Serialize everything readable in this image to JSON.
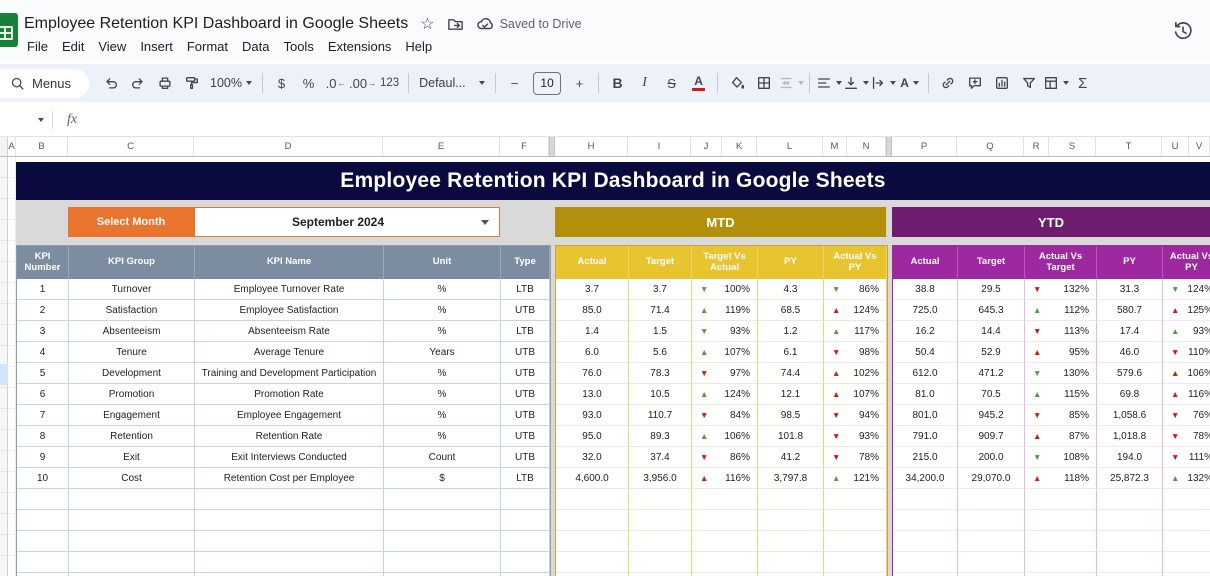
{
  "titlebar": {
    "title": "Employee Retention KPI Dashboard in Google Sheets",
    "saved_status": "Saved to Drive",
    "menus": [
      "File",
      "Edit",
      "View",
      "Insert",
      "Format",
      "Data",
      "Tools",
      "Extensions",
      "Help"
    ]
  },
  "toolbar": {
    "menus_label": "Menus",
    "zoom_value": "100%",
    "currency_label": "$",
    "percent_label": "%",
    "decrease_decimal_label": ".0",
    "increase_decimal_label": ".00",
    "more_formats_label": "123",
    "font_name": "Defaul...",
    "decrease_font_label": "−",
    "font_size": "10",
    "increase_font_label": "+",
    "bold_label": "B",
    "italic_label": "I",
    "strikethrough_label": "S",
    "text_color_label": "A",
    "text_rotation_label": "A",
    "sum_label": "Σ"
  },
  "formula_bar": {
    "fx_label": "fx"
  },
  "icons": {
    "arrow_up": "▲",
    "arrow_down": "▼",
    "arrow_left": "←",
    "arrow_right": "→",
    "star": "☆"
  },
  "columns": [
    "A",
    "B",
    "C",
    "D",
    "E",
    "F",
    "H",
    "I",
    "J",
    "K",
    "L",
    "M",
    "N",
    "P",
    "Q",
    "R",
    "S",
    "T",
    "U",
    "V"
  ],
  "colors": {
    "banner_navy": "#0a0a3e",
    "accent_orange": "#e8742d",
    "mtd_gold_dark": "#b3900b",
    "mtd_gold": "#e9c431",
    "ytd_purple_dark": "#6d1c70",
    "ytd_purple": "#9e28a0",
    "header_slate": "#7d8da1",
    "arrow_green": "#569b44",
    "arrow_red": "#cf1d0e"
  },
  "dashboard": {
    "title": "Employee Retention KPI Dashboard in Google Sheets",
    "select_month_label": "Select Month",
    "selected_month": "September 2024",
    "mtd_label": "MTD",
    "ytd_label": "YTD"
  },
  "table": {
    "info_headers": [
      "KPI Number",
      "KPI Group",
      "KPI Name",
      "Unit",
      "Type"
    ],
    "mtd_headers": [
      "Actual",
      "Target",
      "Target Vs Actual",
      "PY",
      "Actual Vs PY"
    ],
    "ytd_headers": [
      "Actual",
      "Target",
      "Actual Vs Target",
      "PY",
      "Actual Vs PY"
    ],
    "rows": [
      {
        "num": "1",
        "group": "Turnover",
        "name": "Employee Turnover Rate",
        "unit": "%",
        "type": "LTB",
        "mtd": {
          "actual": "3.7",
          "target": "3.7",
          "tva_dir": "down",
          "tva_color": "green",
          "tva": "100%",
          "py": "4.3",
          "avpy_dir": "down",
          "avpy_color": "green",
          "avpy": "86%"
        },
        "ytd": {
          "actual": "38.8",
          "target": "29.5",
          "avt_dir": "down",
          "avt_color": "red",
          "avt": "132%",
          "py": "31.3",
          "avpy_dir": "down",
          "avpy_color": "green",
          "avpy": "124%"
        }
      },
      {
        "num": "2",
        "group": "Satisfaction",
        "name": "Employee Satisfaction",
        "unit": "%",
        "type": "UTB",
        "mtd": {
          "actual": "85.0",
          "target": "71.4",
          "tva_dir": "up",
          "tva_color": "green",
          "tva": "119%",
          "py": "68.5",
          "avpy_dir": "up",
          "avpy_color": "red",
          "avpy": "124%"
        },
        "ytd": {
          "actual": "725.0",
          "target": "645.3",
          "avt_dir": "up",
          "avt_color": "green",
          "avt": "112%",
          "py": "580.7",
          "avpy_dir": "up",
          "avpy_color": "red",
          "avpy": "125%"
        }
      },
      {
        "num": "3",
        "group": "Absenteeism",
        "name": "Absenteeism Rate",
        "unit": "%",
        "type": "LTB",
        "mtd": {
          "actual": "1.4",
          "target": "1.5",
          "tva_dir": "down",
          "tva_color": "green",
          "tva": "93%",
          "py": "1.2",
          "avpy_dir": "up",
          "avpy_color": "green",
          "avpy": "117%"
        },
        "ytd": {
          "actual": "16.2",
          "target": "14.4",
          "avt_dir": "down",
          "avt_color": "red",
          "avt": "113%",
          "py": "17.4",
          "avpy_dir": "up",
          "avpy_color": "green",
          "avpy": "93%"
        }
      },
      {
        "num": "4",
        "group": "Tenure",
        "name": "Average Tenure",
        "unit": "Years",
        "type": "UTB",
        "mtd": {
          "actual": "6.0",
          "target": "5.6",
          "tva_dir": "up",
          "tva_color": "green",
          "tva": "107%",
          "py": "6.1",
          "avpy_dir": "down",
          "avpy_color": "red",
          "avpy": "98%"
        },
        "ytd": {
          "actual": "50.4",
          "target": "52.9",
          "avt_dir": "up",
          "avt_color": "red",
          "avt": "95%",
          "py": "46.0",
          "avpy_dir": "down",
          "avpy_color": "red",
          "avpy": "110%"
        }
      },
      {
        "num": "5",
        "group": "Development",
        "name": "Training and Development Participation",
        "unit": "%",
        "type": "UTB",
        "mtd": {
          "actual": "76.0",
          "target": "78.3",
          "tva_dir": "down",
          "tva_color": "red",
          "tva": "97%",
          "py": "74.4",
          "avpy_dir": "up",
          "avpy_color": "red",
          "avpy": "102%"
        },
        "ytd": {
          "actual": "612.0",
          "target": "471.2",
          "avt_dir": "down",
          "avt_color": "green",
          "avt": "130%",
          "py": "579.6",
          "avpy_dir": "up",
          "avpy_color": "red",
          "avpy": "106%"
        }
      },
      {
        "num": "6",
        "group": "Promotion",
        "name": "Promotion Rate",
        "unit": "%",
        "type": "UTB",
        "mtd": {
          "actual": "13.0",
          "target": "10.5",
          "tva_dir": "up",
          "tva_color": "green",
          "tva": "124%",
          "py": "12.1",
          "avpy_dir": "up",
          "avpy_color": "red",
          "avpy": "107%"
        },
        "ytd": {
          "actual": "81.0",
          "target": "70.5",
          "avt_dir": "up",
          "avt_color": "green",
          "avt": "115%",
          "py": "69.8",
          "avpy_dir": "up",
          "avpy_color": "red",
          "avpy": "116%"
        }
      },
      {
        "num": "7",
        "group": "Engagement",
        "name": "Employee Engagement",
        "unit": "%",
        "type": "UTB",
        "mtd": {
          "actual": "93.0",
          "target": "110.7",
          "tva_dir": "down",
          "tva_color": "red",
          "tva": "84%",
          "py": "98.5",
          "avpy_dir": "down",
          "avpy_color": "red",
          "avpy": "94%"
        },
        "ytd": {
          "actual": "801.0",
          "target": "945.2",
          "avt_dir": "down",
          "avt_color": "red",
          "avt": "85%",
          "py": "1,058.6",
          "avpy_dir": "down",
          "avpy_color": "red",
          "avpy": "76%"
        }
      },
      {
        "num": "8",
        "group": "Retention",
        "name": "Retention Rate",
        "unit": "%",
        "type": "UTB",
        "mtd": {
          "actual": "95.0",
          "target": "89.3",
          "tva_dir": "up",
          "tva_color": "green",
          "tva": "106%",
          "py": "101.8",
          "avpy_dir": "down",
          "avpy_color": "red",
          "avpy": "93%"
        },
        "ytd": {
          "actual": "791.0",
          "target": "909.7",
          "avt_dir": "up",
          "avt_color": "red",
          "avt": "87%",
          "py": "1,018.8",
          "avpy_dir": "down",
          "avpy_color": "red",
          "avpy": "78%"
        }
      },
      {
        "num": "9",
        "group": "Exit",
        "name": "Exit Interviews Conducted",
        "unit": "Count",
        "type": "UTB",
        "mtd": {
          "actual": "32.0",
          "target": "37.4",
          "tva_dir": "down",
          "tva_color": "red",
          "tva": "86%",
          "py": "41.2",
          "avpy_dir": "down",
          "avpy_color": "red",
          "avpy": "78%"
        },
        "ytd": {
          "actual": "215.0",
          "target": "200.0",
          "avt_dir": "down",
          "avt_color": "green",
          "avt": "108%",
          "py": "194.0",
          "avpy_dir": "down",
          "avpy_color": "red",
          "avpy": "111%"
        }
      },
      {
        "num": "10",
        "group": "Cost",
        "name": "Retention Cost per Employee",
        "unit": "$",
        "type": "LTB",
        "mtd": {
          "actual": "4,600.0",
          "target": "3,956.0",
          "tva_dir": "up",
          "tva_color": "red",
          "tva": "116%",
          "py": "3,797.8",
          "avpy_dir": "up",
          "avpy_color": "green",
          "avpy": "121%"
        },
        "ytd": {
          "actual": "34,200.0",
          "target": "29,070.0",
          "avt_dir": "up",
          "avt_color": "red",
          "avt": "118%",
          "py": "25,872.3",
          "avpy_dir": "up",
          "avpy_color": "green",
          "avpy": "132%"
        }
      }
    ]
  }
}
